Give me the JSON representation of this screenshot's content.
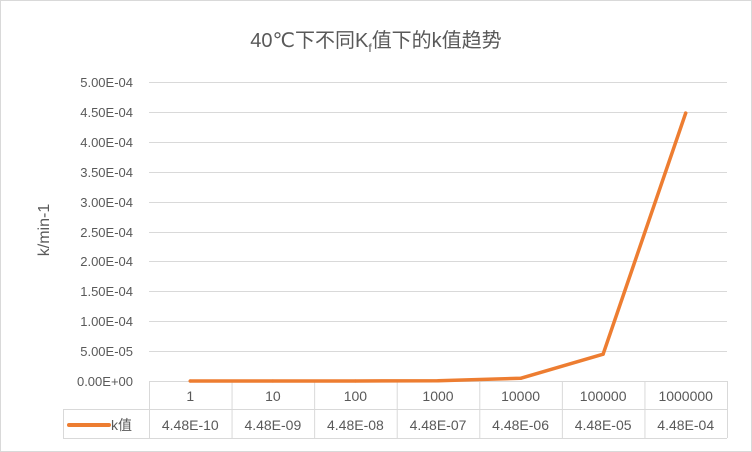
{
  "chart_data": {
    "type": "line",
    "title": {
      "prefix": "40℃下不同K",
      "subscript": "f",
      "suffix": "值下的k值趋势"
    },
    "ylabel": "k/min-1",
    "xlabel": "",
    "categories": [
      "1",
      "10",
      "100",
      "1000",
      "10000",
      "100000",
      "1000000"
    ],
    "series": [
      {
        "name": "k值",
        "color": "#ED7D31",
        "values": [
          4.48e-10,
          4.48e-09,
          4.48e-08,
          4.48e-07,
          4.48e-06,
          4.48e-05,
          0.000448
        ],
        "table_labels": [
          "4.48E-10",
          "4.48E-09",
          "4.48E-08",
          "4.48E-07",
          "4.48E-06",
          "4.48E-05",
          "4.48E-04"
        ]
      }
    ],
    "ylim": [
      0,
      0.0005
    ],
    "yticks": [
      0,
      5e-05,
      0.0001,
      0.00015,
      0.0002,
      0.00025,
      0.0003,
      0.00035,
      0.0004,
      0.00045,
      0.0005
    ],
    "ytick_labels": [
      "0.00E+00",
      "5.00E-05",
      "1.00E-04",
      "1.50E-04",
      "2.00E-04",
      "2.50E-04",
      "3.00E-04",
      "3.50E-04",
      "4.00E-04",
      "4.50E-04",
      "5.00E-04"
    ],
    "grid": true,
    "legend": "data-table"
  }
}
